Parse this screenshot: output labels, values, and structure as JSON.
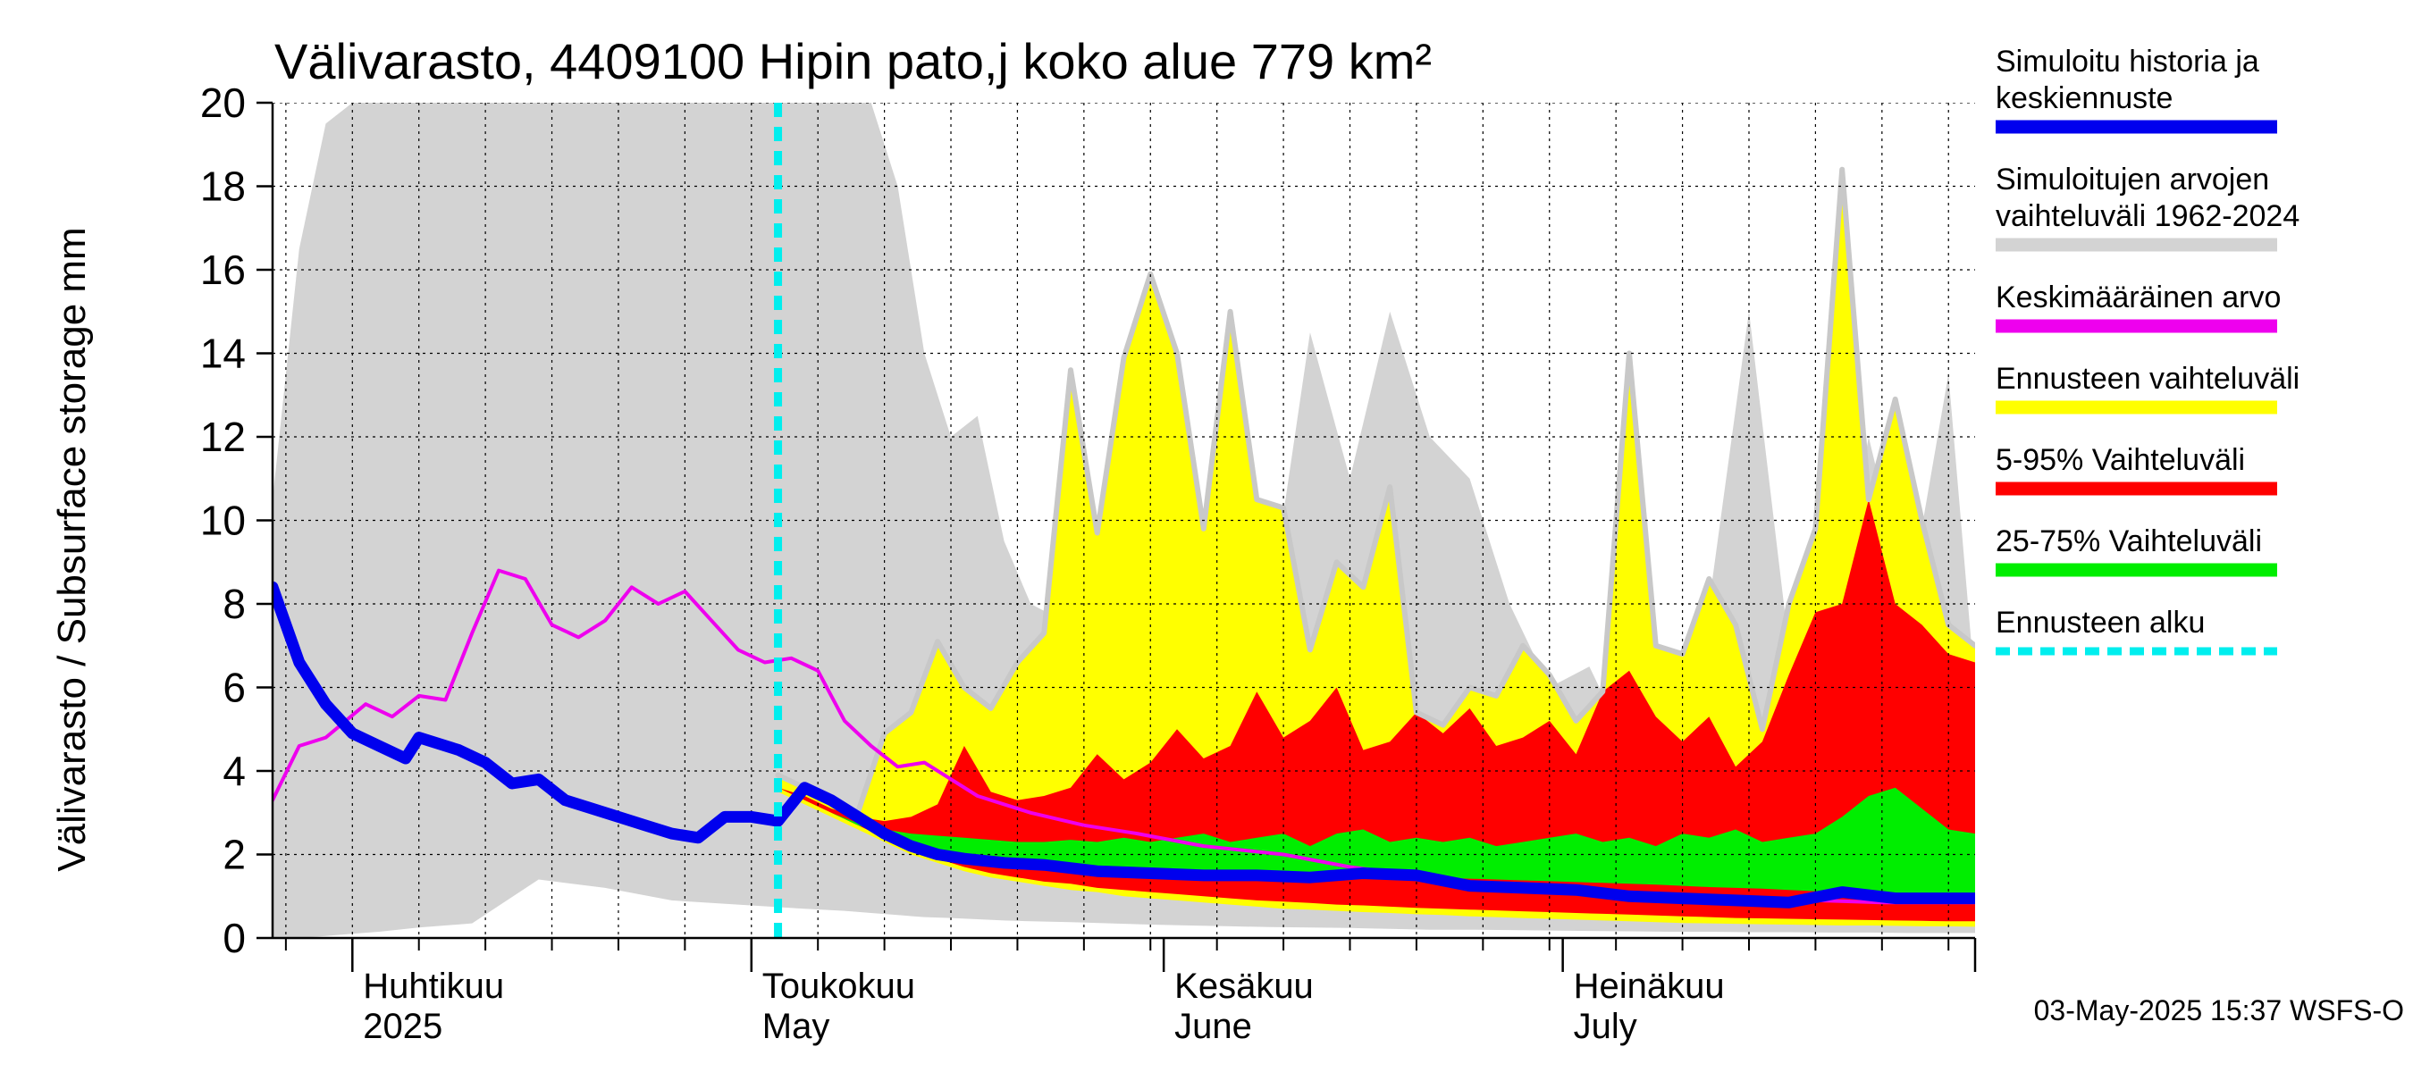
{
  "chart_data": {
    "type": "area",
    "title": "Välivarasto, 4409100 Hipin pato,j koko alue 779 km²",
    "ylabel": "Välivarasto / Subsurface storage  mm",
    "ylim": [
      0,
      20
    ],
    "yticks": [
      0,
      2,
      4,
      6,
      8,
      10,
      12,
      14,
      16,
      18,
      20
    ],
    "x_start": "2025-03-26",
    "x_end": "2025-08-01",
    "forecast_start": "2025-05-03",
    "grid": true,
    "month_labels": [
      {
        "date": "2025-04-01",
        "fi": "Huhtikuu",
        "en": "2025"
      },
      {
        "date": "2025-05-01",
        "fi": "Toukokuu",
        "en": "May"
      },
      {
        "date": "2025-06-01",
        "fi": "Kesäkuu",
        "en": "June"
      },
      {
        "date": "2025-07-01",
        "fi": "Heinäkuu",
        "en": "July"
      }
    ],
    "legend": [
      {
        "label": "Simuloitu historia ja\nkeskiennuste",
        "color": "#0000ee",
        "style": "solid"
      },
      {
        "label": "Simuloitujen arvojen\nvaihteluväli 1962-2024",
        "color": "#d3d3d3",
        "style": "solid"
      },
      {
        "label": "Keskimääräinen arvo",
        "color": "#ee00ee",
        "style": "solid"
      },
      {
        "label": "Ennusteen vaihteluväli",
        "color": "#ffff00",
        "style": "solid"
      },
      {
        "label": "5-95% Vaihteluväli",
        "color": "#ff0000",
        "style": "solid"
      },
      {
        "label": "25-75% Vaihteluväli",
        "color": "#00ee00",
        "style": "solid"
      },
      {
        "label": "Ennusteen alku",
        "color": "#00eeee",
        "style": "dashed"
      }
    ],
    "footer": "03-May-2025 15:37 WSFS-O",
    "series": {
      "history_range": {
        "x": [
          "2025-03-26",
          "2025-03-28",
          "2025-03-30",
          "2025-04-01",
          "2025-04-03",
          "2025-04-06",
          "2025-04-10",
          "2025-04-15",
          "2025-04-20",
          "2025-04-25",
          "2025-04-30",
          "2025-05-05",
          "2025-05-08",
          "2025-05-10",
          "2025-05-12",
          "2025-05-14",
          "2025-05-16",
          "2025-05-18",
          "2025-05-20",
          "2025-05-22",
          "2025-05-25",
          "2025-05-28",
          "2025-05-31",
          "2025-06-03",
          "2025-06-06",
          "2025-06-09",
          "2025-06-12",
          "2025-06-15",
          "2025-06-18",
          "2025-06-21",
          "2025-06-24",
          "2025-06-27",
          "2025-06-30",
          "2025-07-03",
          "2025-07-06",
          "2025-07-09",
          "2025-07-12",
          "2025-07-15",
          "2025-07-18",
          "2025-07-21",
          "2025-07-24",
          "2025-07-27",
          "2025-07-30",
          "2025-08-01"
        ],
        "low": [
          0.0,
          0.0,
          0.05,
          0.1,
          0.15,
          0.25,
          0.35,
          1.4,
          1.2,
          0.9,
          0.8,
          0.7,
          0.65,
          0.6,
          0.55,
          0.5,
          0.48,
          0.45,
          0.42,
          0.4,
          0.38,
          0.35,
          0.32,
          0.3,
          0.28,
          0.26,
          0.25,
          0.24,
          0.22,
          0.2,
          0.2,
          0.19,
          0.18,
          0.17,
          0.16,
          0.15,
          0.15,
          0.14,
          0.14,
          0.13,
          0.13,
          0.12,
          0.12,
          0.12
        ],
        "high": [
          10.5,
          16.5,
          19.5,
          20.0,
          20.0,
          20.0,
          20.0,
          20.0,
          20.0,
          20.0,
          20.0,
          20.0,
          20.0,
          20.0,
          18.0,
          14.0,
          12.0,
          12.5,
          9.5,
          8.0,
          7.5,
          6.5,
          6.3,
          6.0,
          7.0,
          8.0,
          14.5,
          11.0,
          15.0,
          12.0,
          11.0,
          8.0,
          6.0,
          6.5,
          4.5,
          5.0,
          8.0,
          15.0,
          7.0,
          6.5,
          12.0,
          8.0,
          13.5,
          6.0
        ]
      },
      "forecast_range": {
        "x": [
          "2025-05-03",
          "2025-05-05",
          "2025-05-07",
          "2025-05-09",
          "2025-05-11",
          "2025-05-13",
          "2025-05-15",
          "2025-05-17",
          "2025-05-19",
          "2025-05-21",
          "2025-05-23",
          "2025-05-25",
          "2025-05-27",
          "2025-05-29",
          "2025-05-31",
          "2025-06-02",
          "2025-06-04",
          "2025-06-06",
          "2025-06-08",
          "2025-06-10",
          "2025-06-12",
          "2025-06-14",
          "2025-06-16",
          "2025-06-18",
          "2025-06-20",
          "2025-06-22",
          "2025-06-24",
          "2025-06-26",
          "2025-06-28",
          "2025-06-30",
          "2025-07-02",
          "2025-07-04",
          "2025-07-06",
          "2025-07-08",
          "2025-07-10",
          "2025-07-12",
          "2025-07-14",
          "2025-07-16",
          "2025-07-18",
          "2025-07-20",
          "2025-07-22",
          "2025-07-24",
          "2025-07-26",
          "2025-07-28",
          "2025-07-30",
          "2025-08-01"
        ],
        "min": [
          3.5,
          3.2,
          2.9,
          2.6,
          2.3,
          2.0,
          1.8,
          1.6,
          1.45,
          1.35,
          1.25,
          1.15,
          1.1,
          1.0,
          0.95,
          0.9,
          0.85,
          0.8,
          0.75,
          0.7,
          0.68,
          0.65,
          0.62,
          0.6,
          0.57,
          0.55,
          0.52,
          0.5,
          0.48,
          0.46,
          0.44,
          0.42,
          0.4,
          0.38,
          0.36,
          0.35,
          0.34,
          0.33,
          0.32,
          0.31,
          0.3,
          0.3,
          0.29,
          0.28,
          0.28,
          0.27
        ],
        "p5": [
          3.6,
          3.3,
          3.0,
          2.7,
          2.4,
          2.1,
          1.9,
          1.7,
          1.55,
          1.45,
          1.35,
          1.3,
          1.2,
          1.15,
          1.1,
          1.05,
          1.0,
          0.95,
          0.9,
          0.87,
          0.84,
          0.8,
          0.78,
          0.75,
          0.72,
          0.7,
          0.68,
          0.66,
          0.64,
          0.62,
          0.6,
          0.58,
          0.56,
          0.54,
          0.52,
          0.5,
          0.48,
          0.47,
          0.46,
          0.45,
          0.44,
          0.43,
          0.42,
          0.41,
          0.4,
          0.4
        ],
        "p25": [
          3.6,
          3.3,
          3.0,
          2.7,
          2.5,
          2.3,
          2.1,
          1.95,
          1.85,
          1.8,
          1.75,
          1.72,
          1.7,
          1.68,
          1.66,
          1.64,
          1.62,
          1.6,
          1.58,
          1.56,
          1.55,
          1.53,
          1.5,
          1.48,
          1.46,
          1.44,
          1.42,
          1.4,
          1.38,
          1.36,
          1.34,
          1.32,
          1.3,
          1.28,
          1.25,
          1.22,
          1.2,
          1.18,
          1.15,
          1.12,
          1.1,
          1.08,
          1.06,
          1.05,
          1.04,
          1.03
        ],
        "p75": [
          3.6,
          3.3,
          3.0,
          2.75,
          2.6,
          2.5,
          2.45,
          2.4,
          2.35,
          2.3,
          2.3,
          2.35,
          2.3,
          2.4,
          2.3,
          2.4,
          2.5,
          2.3,
          2.4,
          2.5,
          2.2,
          2.5,
          2.6,
          2.3,
          2.4,
          2.3,
          2.4,
          2.2,
          2.3,
          2.4,
          2.5,
          2.3,
          2.4,
          2.2,
          2.5,
          2.4,
          2.6,
          2.3,
          2.4,
          2.5,
          2.9,
          3.4,
          3.6,
          3.1,
          2.6,
          2.5
        ],
        "p95": [
          3.6,
          3.4,
          3.1,
          2.9,
          2.8,
          2.9,
          3.2,
          4.6,
          3.5,
          3.3,
          3.4,
          3.6,
          4.4,
          3.8,
          4.2,
          5.0,
          4.3,
          4.6,
          5.9,
          4.8,
          5.2,
          6.0,
          4.5,
          4.7,
          5.4,
          4.9,
          5.5,
          4.6,
          4.8,
          5.2,
          4.4,
          5.9,
          6.4,
          5.3,
          4.7,
          5.3,
          4.1,
          4.7,
          6.3,
          7.8,
          8.0,
          10.5,
          8.0,
          7.5,
          6.8,
          6.6
        ],
        "max": [
          3.9,
          3.6,
          3.3,
          3.0,
          4.9,
          5.4,
          7.1,
          6.0,
          5.5,
          6.6,
          7.3,
          13.6,
          9.7,
          13.9,
          15.9,
          14.0,
          9.8,
          15.0,
          10.5,
          10.3,
          6.9,
          9.0,
          8.4,
          10.8,
          5.4,
          5.1,
          6.0,
          5.8,
          7.0,
          6.3,
          5.2,
          5.9,
          14.0,
          7.0,
          6.8,
          8.6,
          7.5,
          5.0,
          8.0,
          9.8,
          18.4,
          10.5,
          12.9,
          10.0,
          7.5,
          7.0
        ]
      },
      "mean": {
        "x": [
          "2025-03-26",
          "2025-03-28",
          "2025-03-30",
          "2025-04-02",
          "2025-04-04",
          "2025-04-06",
          "2025-04-08",
          "2025-04-10",
          "2025-04-12",
          "2025-04-14",
          "2025-04-16",
          "2025-04-18",
          "2025-04-20",
          "2025-04-22",
          "2025-04-24",
          "2025-04-26",
          "2025-04-28",
          "2025-04-30",
          "2025-05-02",
          "2025-05-04",
          "2025-05-06",
          "2025-05-08",
          "2025-05-10",
          "2025-05-12",
          "2025-05-14",
          "2025-05-18",
          "2025-05-22",
          "2025-05-26",
          "2025-05-30",
          "2025-06-04",
          "2025-06-10",
          "2025-06-15",
          "2025-06-20",
          "2025-06-25",
          "2025-06-30",
          "2025-07-05",
          "2025-07-10",
          "2025-07-15",
          "2025-07-20",
          "2025-07-25",
          "2025-07-30",
          "2025-08-01"
        ],
        "values": [
          3.3,
          4.6,
          4.8,
          5.6,
          5.3,
          5.8,
          5.7,
          7.3,
          8.8,
          8.6,
          7.5,
          7.2,
          7.6,
          8.4,
          8.0,
          8.3,
          7.6,
          6.9,
          6.6,
          6.7,
          6.4,
          5.2,
          4.6,
          4.1,
          4.2,
          3.4,
          3.0,
          2.7,
          2.5,
          2.2,
          2.0,
          1.7,
          1.5,
          1.3,
          1.2,
          1.1,
          1.0,
          0.95,
          0.9,
          0.85,
          0.85,
          0.85
        ]
      },
      "median": {
        "x": [
          "2025-03-26",
          "2025-03-28",
          "2025-03-30",
          "2025-04-01",
          "2025-04-03",
          "2025-04-05",
          "2025-04-06",
          "2025-04-09",
          "2025-04-11",
          "2025-04-13",
          "2025-04-15",
          "2025-04-17",
          "2025-04-19",
          "2025-04-21",
          "2025-04-23",
          "2025-04-25",
          "2025-04-27",
          "2025-04-29",
          "2025-05-01",
          "2025-05-03",
          "2025-05-05",
          "2025-05-07",
          "2025-05-09",
          "2025-05-11",
          "2025-05-13",
          "2025-05-15",
          "2025-05-17",
          "2025-05-20",
          "2025-05-23",
          "2025-05-27",
          "2025-05-31",
          "2025-06-04",
          "2025-06-08",
          "2025-06-12",
          "2025-06-16",
          "2025-06-20",
          "2025-06-24",
          "2025-06-28",
          "2025-07-02",
          "2025-07-06",
          "2025-07-10",
          "2025-07-14",
          "2025-07-18",
          "2025-07-22",
          "2025-07-26",
          "2025-07-30",
          "2025-08-01"
        ],
        "values": [
          8.4,
          6.6,
          5.6,
          4.9,
          4.6,
          4.3,
          4.8,
          4.5,
          4.2,
          3.7,
          3.8,
          3.3,
          3.1,
          2.9,
          2.7,
          2.5,
          2.4,
          2.9,
          2.9,
          2.8,
          3.6,
          3.3,
          2.9,
          2.5,
          2.2,
          2.0,
          1.9,
          1.8,
          1.75,
          1.6,
          1.55,
          1.5,
          1.5,
          1.45,
          1.55,
          1.5,
          1.25,
          1.2,
          1.15,
          1.0,
          0.95,
          0.9,
          0.85,
          1.1,
          0.95,
          0.95,
          0.95
        ]
      }
    }
  }
}
